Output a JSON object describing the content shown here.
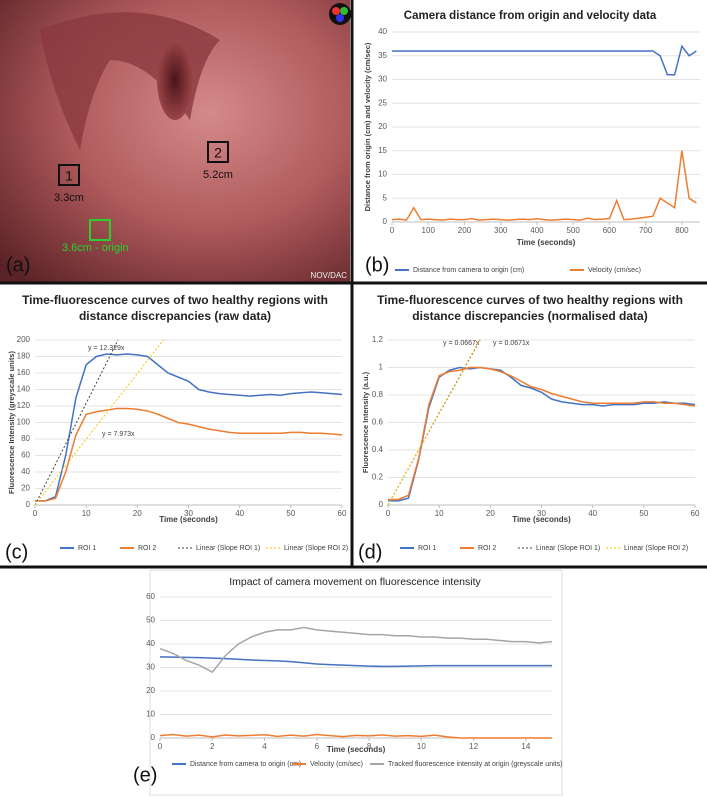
{
  "image_panel": {
    "panel": "(a)",
    "regions": [
      {
        "label": "1",
        "distance": "3.3cm"
      },
      {
        "label": "2",
        "distance": "5.2cm"
      }
    ],
    "origin": "3.6cm - origin",
    "watermark": "NOV/DAC"
  },
  "chart_data": [
    {
      "type": "line",
      "panel": "(b)",
      "title": "Camera distance from origin and velocity data",
      "x_label": "Time (seconds)",
      "y_label": "Distance from origin (cm) and velocity (cm/sec)",
      "x": [
        0,
        20,
        40,
        60,
        80,
        100,
        120,
        140,
        160,
        180,
        200,
        220,
        240,
        260,
        280,
        300,
        320,
        340,
        360,
        380,
        400,
        420,
        440,
        460,
        480,
        500,
        520,
        540,
        560,
        580,
        600,
        620,
        640,
        660,
        680,
        700,
        720,
        740,
        760,
        780,
        800,
        820,
        840
      ],
      "series": [
        {
          "name": "Distance from camera to origin (cm)",
          "color": "#4472c4",
          "values": [
            36,
            36,
            36,
            36,
            36,
            36,
            36,
            36,
            36,
            36,
            36,
            36,
            36,
            36,
            36,
            36,
            36,
            36,
            36,
            36,
            36,
            36,
            36,
            36,
            36,
            36,
            36,
            36,
            36,
            36,
            36,
            36,
            36,
            36,
            36,
            36,
            36,
            35,
            31,
            31,
            37,
            35,
            36
          ]
        },
        {
          "name": "Velocity (cm/sec)",
          "color": "#ed7d31",
          "values": [
            0.5,
            0.6,
            0.4,
            3,
            0.5,
            0.6,
            0.5,
            0.4,
            0.6,
            0.5,
            0.5,
            0.7,
            0.4,
            0.5,
            0.6,
            0.5,
            0.4,
            0.5,
            0.6,
            0.5,
            0.7,
            0.5,
            0.4,
            0.5,
            0.6,
            0.5,
            0.4,
            0.8,
            0.5,
            0.6,
            0.7,
            4.5,
            0.5,
            0.6,
            0.8,
            1,
            1.2,
            5,
            4,
            3,
            15,
            5,
            4
          ]
        }
      ],
      "xlim": [
        0,
        850
      ],
      "xticks": [
        0,
        100,
        200,
        300,
        400,
        500,
        600,
        700,
        800
      ],
      "ylim": [
        0,
        40
      ],
      "yticks": [
        0,
        5,
        10,
        15,
        20,
        25,
        30,
        35,
        40
      ],
      "grid": true
    },
    {
      "type": "line",
      "panel": "(c)",
      "title": "Time-fluorescence curves of two healthy regions with distance discrepancies (raw data)",
      "x_label": "Time (seconds)",
      "y_label": "Fluorescence Intensity (greyscale units)",
      "x": [
        0,
        2,
        4,
        6,
        8,
        10,
        12,
        14,
        16,
        18,
        20,
        22,
        24,
        26,
        28,
        30,
        32,
        34,
        36,
        38,
        40,
        42,
        44,
        46,
        48,
        50,
        52,
        54,
        56,
        58,
        60
      ],
      "series": [
        {
          "name": "ROI 1",
          "color": "#4472c4",
          "values": [
            5,
            5,
            10,
            60,
            130,
            170,
            180,
            183,
            182,
            183,
            182,
            180,
            170,
            160,
            155,
            150,
            140,
            137,
            135,
            134,
            133,
            132,
            133,
            134,
            133,
            135,
            136,
            137,
            136,
            135,
            134
          ]
        },
        {
          "name": "ROI 2",
          "color": "#ed7d31",
          "values": [
            5,
            5,
            8,
            40,
            85,
            110,
            113,
            115,
            117,
            117,
            116,
            114,
            110,
            105,
            100,
            98,
            95,
            92,
            90,
            88,
            87,
            87,
            87,
            87,
            87,
            88,
            88,
            87,
            87,
            86,
            85
          ]
        }
      ],
      "trendlines": [
        {
          "name": "Linear (Slope ROI 1)",
          "color": "#404040",
          "slope": 12.329,
          "label": "y = 12.329x"
        },
        {
          "name": "Linear (Slope ROI 2)",
          "color": "#ffc000",
          "slope": 7.973,
          "label": "y = 7.973x"
        }
      ],
      "xlim": [
        0,
        60
      ],
      "xticks": [
        0,
        10,
        20,
        30,
        40,
        50,
        60
      ],
      "ylim": [
        0,
        200
      ],
      "yticks": [
        0,
        20,
        40,
        60,
        80,
        100,
        120,
        140,
        160,
        180,
        200
      ],
      "grid": true
    },
    {
      "type": "line",
      "panel": "(d)",
      "title": "Time-fluorescence curves of two healthy regions with distance discrepancies (normalised data)",
      "x_label": "Time (seconds)",
      "y_label": "Fluorescence Intensity (a.u.)",
      "x": [
        0,
        2,
        4,
        6,
        8,
        10,
        12,
        14,
        16,
        18,
        20,
        22,
        24,
        26,
        28,
        30,
        32,
        34,
        36,
        38,
        40,
        42,
        44,
        46,
        48,
        50,
        52,
        54,
        56,
        58,
        60
      ],
      "series": [
        {
          "name": "ROI 1",
          "color": "#4472c4",
          "values": [
            0.03,
            0.03,
            0.05,
            0.33,
            0.71,
            0.93,
            0.98,
            1,
            0.99,
            1,
            0.99,
            0.98,
            0.93,
            0.87,
            0.85,
            0.82,
            0.77,
            0.75,
            0.74,
            0.73,
            0.73,
            0.72,
            0.73,
            0.73,
            0.73,
            0.74,
            0.74,
            0.75,
            0.74,
            0.74,
            0.73
          ]
        },
        {
          "name": "ROI 2",
          "color": "#ed7d31",
          "values": [
            0.04,
            0.04,
            0.07,
            0.34,
            0.73,
            0.94,
            0.97,
            0.98,
            1,
            1,
            0.99,
            0.97,
            0.94,
            0.9,
            0.86,
            0.84,
            0.81,
            0.79,
            0.77,
            0.75,
            0.74,
            0.74,
            0.74,
            0.74,
            0.74,
            0.75,
            0.75,
            0.74,
            0.74,
            0.73,
            0.72
          ]
        }
      ],
      "trendlines": [
        {
          "name": "Linear (Slope ROI 1)",
          "color": "#404040",
          "slope": 0.0667,
          "label": "y = 0.0667x"
        },
        {
          "name": "Linear (Slope ROI 2)",
          "color": "#ffc000",
          "slope": 0.0671,
          "label": "y = 0.0671x"
        }
      ],
      "xlim": [
        0,
        60
      ],
      "xticks": [
        0,
        10,
        20,
        30,
        40,
        50,
        60
      ],
      "ylim": [
        0,
        1.2
      ],
      "yticks": [
        0,
        0.2,
        0.4,
        0.6,
        0.8,
        1,
        1.2
      ],
      "grid": true
    },
    {
      "type": "line",
      "panel": "(e)",
      "title": "Impact of camera movement on fluorescence intensity",
      "x_label": "Time (seconds)",
      "x": [
        0,
        0.5,
        1,
        1.5,
        2,
        2.5,
        3,
        3.5,
        4,
        4.5,
        5,
        5.5,
        6,
        6.5,
        7,
        7.5,
        8,
        8.5,
        9,
        9.5,
        10,
        10.5,
        11,
        11.5,
        12,
        12.5,
        13,
        13.5,
        14,
        14.5,
        15
      ],
      "series": [
        {
          "name": "Distance from camera to origin (cm)",
          "color": "#4472c4",
          "values": [
            34.5,
            34.4,
            34.3,
            34.2,
            34,
            33.8,
            33.5,
            33.2,
            33,
            32.8,
            32.5,
            32,
            31.5,
            31.2,
            31,
            30.8,
            30.6,
            30.5,
            30.5,
            30.6,
            30.7,
            30.8,
            30.8,
            30.8,
            30.8,
            30.8,
            30.8,
            30.8,
            30.8,
            30.8,
            30.8
          ]
        },
        {
          "name": "Velocity (cm/sec)",
          "color": "#ed7d31",
          "values": [
            1,
            1.5,
            0.8,
            1.2,
            0.5,
            1.3,
            0.9,
            1.1,
            1.4,
            0.7,
            1.2,
            0.8,
            1.5,
            1,
            0.6,
            1.1,
            0.9,
            1.3,
            0.8,
            1,
            0.7,
            1.2,
            0.5,
            0,
            0,
            0,
            0,
            0,
            0,
            0,
            0
          ]
        },
        {
          "name": "Tracked fluorescence intensity at origin (greyscale units)",
          "color": "#a5a5a5",
          "values": [
            38,
            36,
            33,
            31,
            28,
            35,
            40,
            43,
            45,
            46,
            46,
            47,
            46,
            45.5,
            45,
            44.5,
            44,
            44,
            43.5,
            43.5,
            43,
            43,
            42.5,
            42.5,
            42,
            42,
            41.5,
            41,
            41,
            40.5,
            41
          ]
        }
      ],
      "xlim": [
        0,
        15
      ],
      "xticks": [
        0,
        2,
        4,
        6,
        8,
        10,
        12,
        14
      ],
      "ylim": [
        0,
        60
      ],
      "yticks": [
        0,
        10,
        20,
        30,
        40,
        50,
        60
      ],
      "grid": true
    }
  ]
}
